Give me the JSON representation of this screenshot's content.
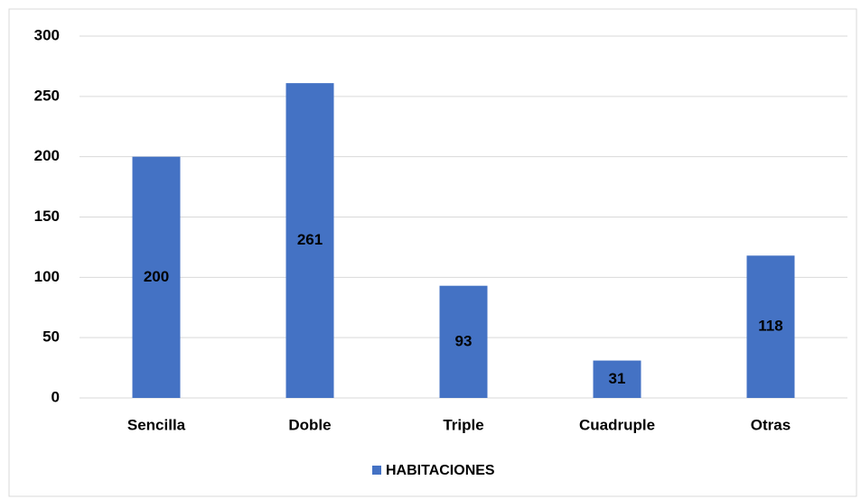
{
  "chart_data": {
    "type": "bar",
    "categories": [
      "Sencilla",
      "Doble",
      "Triple",
      "Cuadruple",
      "Otras"
    ],
    "series": [
      {
        "name": "HABITACIONES",
        "color": "#4472c4",
        "values": [
          200,
          261,
          93,
          31,
          118
        ]
      }
    ],
    "ylim": [
      0,
      300
    ],
    "yticks": [
      0,
      50,
      100,
      150,
      200,
      250,
      300
    ],
    "grid": true,
    "legend": "bottom",
    "data_labels": true
  }
}
